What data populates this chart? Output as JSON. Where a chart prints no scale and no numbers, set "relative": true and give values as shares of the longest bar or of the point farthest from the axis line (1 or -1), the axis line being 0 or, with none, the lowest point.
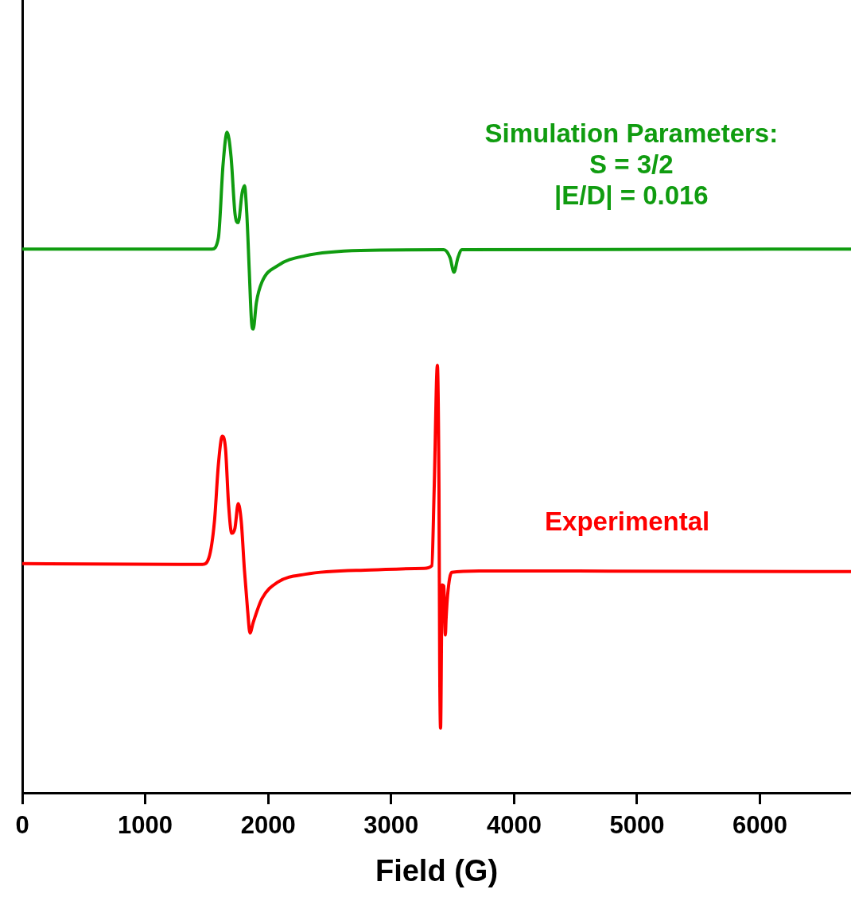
{
  "chart_data": {
    "type": "line",
    "xlabel": "Field (G)",
    "relative": true,
    "xlim": [
      0,
      6740
    ],
    "xticks": [
      0,
      1000,
      2000,
      3000,
      4000,
      5000,
      6000
    ],
    "grid": false,
    "legend": false,
    "marker": "none",
    "line_style": "solid",
    "series": [
      {
        "name": "Simulation Parameters:\nS = 3/2\n|E/D| = 0.016",
        "color": "#109c10",
        "x": [
          0,
          1543,
          1595,
          1633,
          1666,
          1698,
          1730,
          1756,
          1788,
          1807,
          1826,
          1846,
          1865,
          1878,
          1904,
          1949,
          2077,
          2302,
          2752,
          3428,
          3479,
          3511,
          3543,
          3576,
          6740
        ],
        "values": [
          0.823,
          0.823,
          0.84,
          0.951,
          1.0,
          0.963,
          0.877,
          0.863,
          0.908,
          0.919,
          0.877,
          0.791,
          0.712,
          0.702,
          0.742,
          0.773,
          0.798,
          0.813,
          0.821,
          0.822,
          0.81,
          0.788,
          0.81,
          0.822,
          0.823
        ]
      },
      {
        "name": "Experimental",
        "color": "#ff0000",
        "x": [
          0,
          1466,
          1518,
          1563,
          1595,
          1627,
          1653,
          1678,
          1704,
          1730,
          1756,
          1781,
          1807,
          1833,
          1852,
          1878,
          1949,
          2077,
          2302,
          2752,
          3267,
          3331,
          3350,
          3376,
          3389,
          3395,
          3402,
          3415,
          3428,
          3441,
          3447,
          3460,
          3492,
          3717,
          6740
        ],
        "values": [
          0.347,
          0.346,
          0.356,
          0.411,
          0.497,
          0.54,
          0.521,
          0.436,
          0.393,
          0.401,
          0.438,
          0.411,
          0.337,
          0.276,
          0.242,
          0.258,
          0.294,
          0.319,
          0.331,
          0.337,
          0.34,
          0.344,
          0.46,
          0.647,
          0.46,
          0.19,
          0.098,
          0.315,
          0.313,
          0.239,
          0.264,
          0.301,
          0.334,
          0.336,
          0.335
        ]
      }
    ]
  }
}
